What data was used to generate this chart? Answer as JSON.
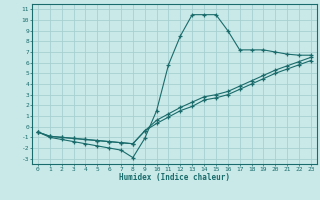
{
  "xlabel": "Humidex (Indice chaleur)",
  "xlim": [
    -0.5,
    23.5
  ],
  "ylim": [
    -3.5,
    11.5
  ],
  "xticks": [
    0,
    1,
    2,
    3,
    4,
    5,
    6,
    7,
    8,
    9,
    10,
    11,
    12,
    13,
    14,
    15,
    16,
    17,
    18,
    19,
    20,
    21,
    22,
    23
  ],
  "yticks": [
    -3,
    -2,
    -1,
    0,
    1,
    2,
    3,
    4,
    5,
    6,
    7,
    8,
    9,
    10,
    11
  ],
  "bg_color": "#c9e9e9",
  "grid_color": "#a8d0d0",
  "line_color": "#1a6b6b",
  "line1_x": [
    0,
    1,
    2,
    3,
    4,
    5,
    6,
    7,
    8,
    9,
    10,
    11,
    12,
    13,
    14,
    15,
    16,
    17,
    18,
    19,
    20,
    21,
    22,
    23
  ],
  "line1_y": [
    -0.5,
    -1.0,
    -1.2,
    -1.4,
    -1.6,
    -1.8,
    -2.0,
    -2.2,
    -2.9,
    -1.1,
    1.5,
    5.8,
    8.5,
    10.5,
    10.5,
    10.5,
    9.0,
    7.2,
    7.2,
    7.2,
    7.0,
    6.8,
    6.7,
    6.7
  ],
  "line2_x": [
    0,
    1,
    2,
    3,
    4,
    5,
    6,
    7,
    8,
    9,
    10,
    11,
    12,
    13,
    14,
    15,
    16,
    17,
    18,
    19,
    20,
    21,
    22,
    23
  ],
  "line2_y": [
    -0.5,
    -0.9,
    -1.0,
    -1.1,
    -1.2,
    -1.3,
    -1.4,
    -1.5,
    -1.6,
    -0.4,
    0.6,
    1.2,
    1.8,
    2.3,
    2.8,
    3.0,
    3.3,
    3.8,
    4.3,
    4.8,
    5.3,
    5.7,
    6.1,
    6.5
  ],
  "line3_x": [
    0,
    1,
    2,
    3,
    4,
    5,
    6,
    7,
    8,
    9,
    10,
    11,
    12,
    13,
    14,
    15,
    16,
    17,
    18,
    19,
    20,
    21,
    22,
    23
  ],
  "line3_y": [
    -0.5,
    -0.9,
    -1.0,
    -1.1,
    -1.2,
    -1.3,
    -1.4,
    -1.5,
    -1.6,
    -0.4,
    0.3,
    0.9,
    1.5,
    1.9,
    2.5,
    2.7,
    3.0,
    3.5,
    4.0,
    4.5,
    5.0,
    5.4,
    5.8,
    6.2
  ]
}
